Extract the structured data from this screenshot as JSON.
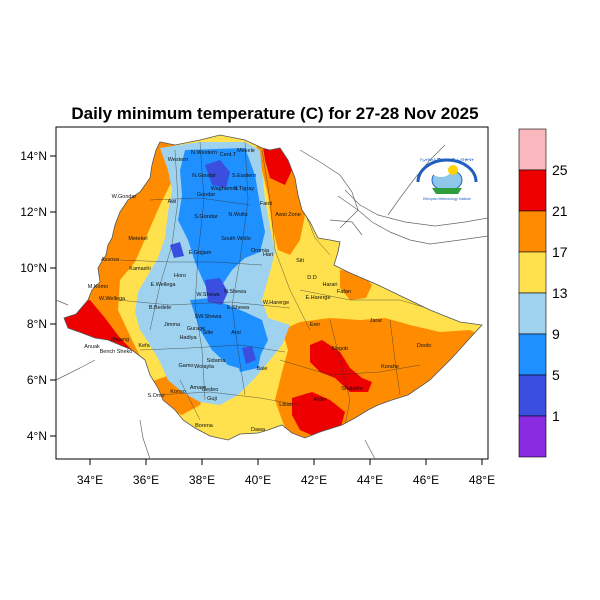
{
  "title": "Daily minimum temperature (C) for 27-28 Nov 2025",
  "x_ticks": [
    "34°E",
    "36°E",
    "38°E",
    "40°E",
    "42°E",
    "44°E",
    "46°E",
    "48°E"
  ],
  "y_ticks": [
    "14°N",
    "12°N",
    "10°N",
    "8°N",
    "6°N",
    "4°N"
  ],
  "colorbar": {
    "labels": [
      "25",
      "21",
      "17",
      "13",
      "9",
      "5",
      "1"
    ],
    "colors": [
      "#fbb7be",
      "#ee0000",
      "#ff8c00",
      "#ffe14d",
      "#9fd2ef",
      "#1e90ff",
      "#3a4fe0",
      "#8a2be2"
    ]
  },
  "logo": {
    "line1": "የኢትዮጵያ ሚቲዮሮሎጂ ኢንስቲትዩት",
    "line2": "Ethiopian Meteorology Institute"
  },
  "region_labels": [
    "N.Western",
    "Cent.T",
    "Mekele",
    "Western",
    "N.Gondar",
    "S.Eastern",
    "Waghamra",
    "S.Tigray",
    "Gondar",
    "Awi",
    "W.Gondar",
    "S.Gondar",
    "N.Wollo",
    "Fanti",
    "Awsi Zone",
    "Metekel",
    "E.Gojjam",
    "South Wollo",
    "Oromia",
    "Hari",
    "Siti",
    "Assosa",
    "Kamashi",
    "E.Wellega",
    "Horo",
    "N.Shewa",
    "W.Harerge",
    "E.Harerge",
    "Fafan",
    "D.D",
    "Harari",
    "M.Komo",
    "W.Wellega",
    "B.Bedele",
    "Jimma",
    "W.Shewa",
    "SW.Shewa",
    "E.Shewa",
    "Arsi",
    "Erer",
    "Jarar",
    "Nogob",
    "Doolo",
    "Korahe",
    "Shabelle",
    "Gamo",
    "Wolayta",
    "Sidama",
    "Bale",
    "Afder",
    "Liban",
    "Dawa",
    "Borena",
    "Gedeo",
    "S.Omo",
    "Kefa",
    "Bench Sheko",
    "Majang",
    "Anuak",
    "Amaro",
    "Guji",
    "Konso",
    "Hadiya",
    "Gurage",
    "Silte"
  ]
}
